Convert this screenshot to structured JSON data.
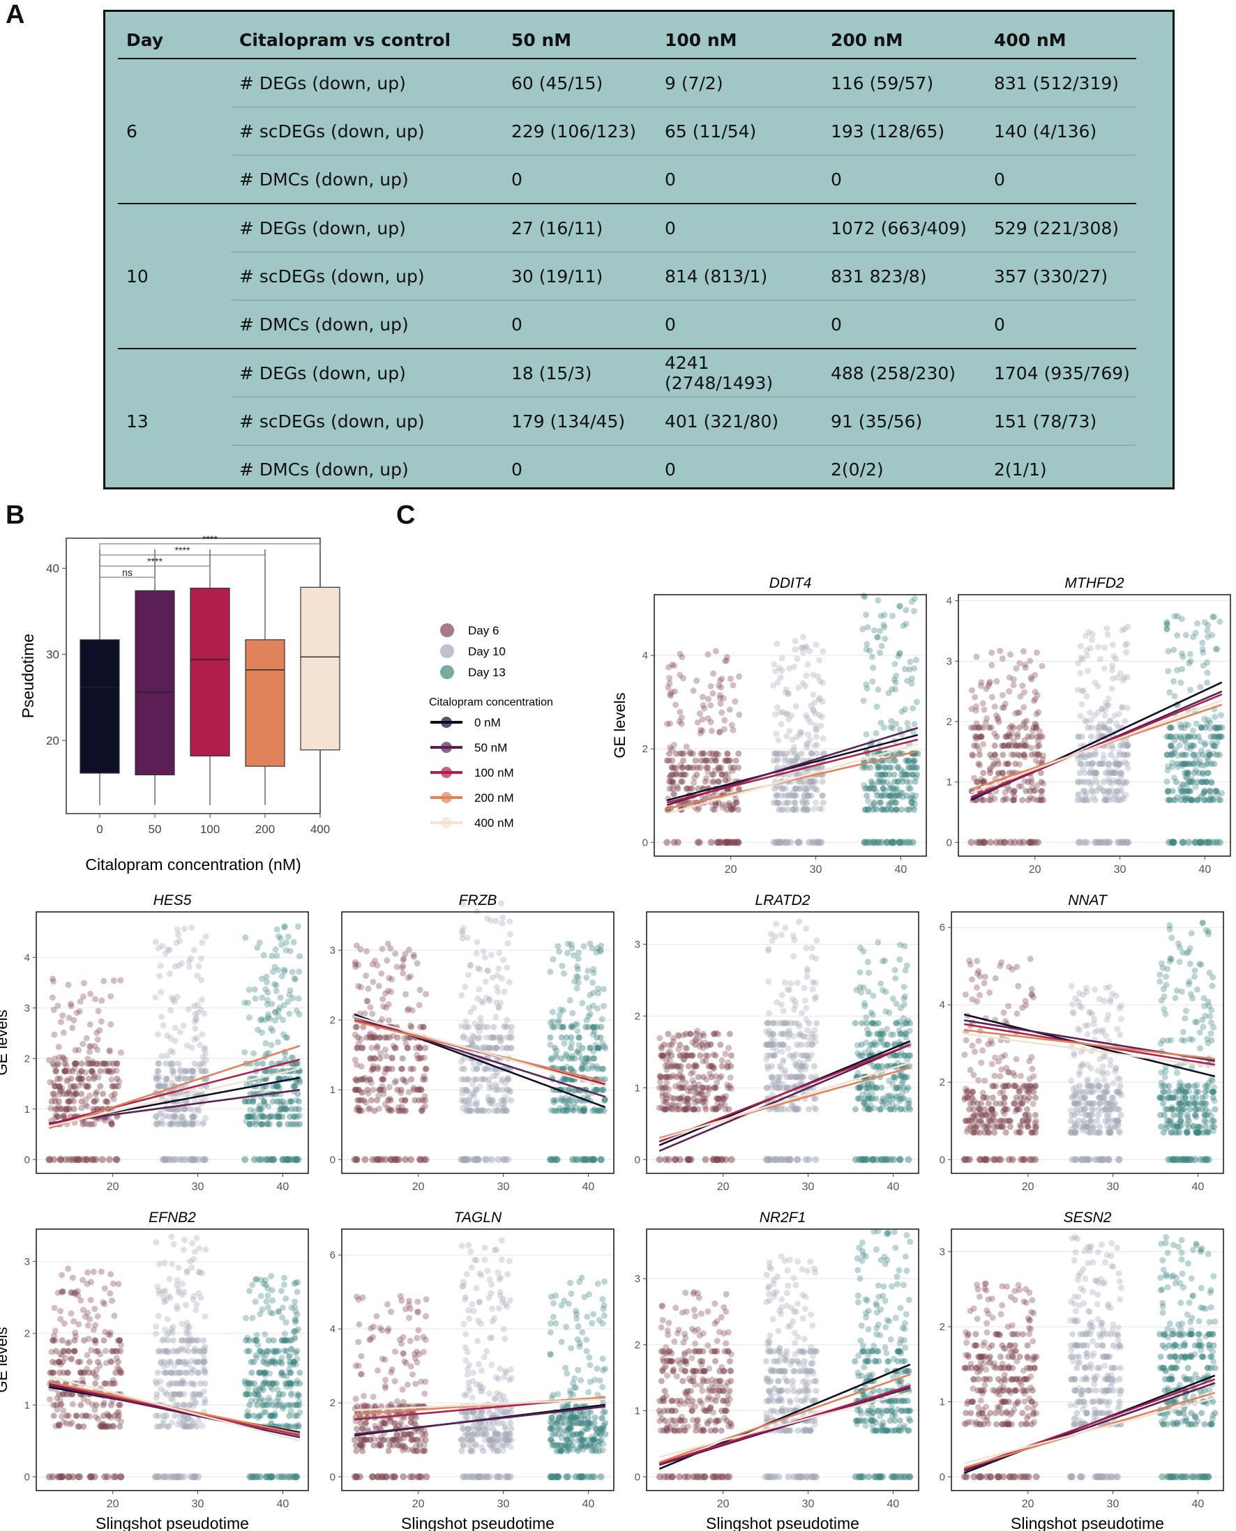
{
  "panels": {
    "a": "A",
    "b": "B",
    "c": "C"
  },
  "table": {
    "headers": [
      "Day",
      "Citalopram vs control",
      "50 nM",
      "100 nM",
      "200 nM",
      "400 nM"
    ],
    "groups": [
      {
        "day": "6",
        "rows": [
          {
            "label": "# DEGs (down, up)",
            "values": [
              "60 (45/15)",
              "9 (7/2)",
              "116 (59/57)",
              "831 (512/319)"
            ]
          },
          {
            "label": "# scDEGs (down, up)",
            "values": [
              "229 (106/123)",
              "65 (11/54)",
              "193 (128/65)",
              "140 (4/136)"
            ]
          },
          {
            "label": "# DMCs (down, up)",
            "values": [
              "0",
              "0",
              "0",
              "0"
            ]
          }
        ]
      },
      {
        "day": "10",
        "rows": [
          {
            "label": "# DEGs (down, up)",
            "values": [
              "27 (16/11)",
              "0",
              "1072 (663/409)",
              "529 (221/308)"
            ]
          },
          {
            "label": "# scDEGs (down, up)",
            "values": [
              "30 (19/11)",
              "814 (813/1)",
              "831 823/8)",
              "357 (330/27)"
            ]
          },
          {
            "label": "# DMCs (down, up)",
            "values": [
              "0",
              "0",
              "0",
              "0"
            ]
          }
        ]
      },
      {
        "day": "13",
        "rows": [
          {
            "label": "# DEGs (down, up)",
            "values": [
              "18 (15/3)",
              "4241 (2748/1493)",
              "488 (258/230)",
              "1704 (935/769)"
            ]
          },
          {
            "label": "# scDEGs (down, up)",
            "values": [
              "179 (134/45)",
              "401 (321/80)",
              "91 (35/56)",
              "151 (78/73)"
            ]
          },
          {
            "label": "# DMCs (down, up)",
            "values": [
              "0",
              "0",
              "2(0/2)",
              "2(1/1)"
            ]
          }
        ]
      }
    ]
  },
  "colors": {
    "conc": [
      "#0e0f26",
      "#5b1f55",
      "#b01e4b",
      "#e0825a",
      "#f4e3d3"
    ],
    "day": [
      "#7f4650",
      "#a4a8b6",
      "#3f8582"
    ],
    "tableBg": "#a1c6c6"
  },
  "legend": {
    "day_entries": [
      "Day 6",
      "Day 10",
      "Day 13"
    ],
    "conc_title": "Citalopram concentration",
    "conc_entries": [
      "0 nM",
      "50 nM",
      "100 nM",
      "200 nM",
      "400 nM"
    ]
  },
  "chart_data": [
    {
      "type": "box",
      "ylabel": "Pseudotime",
      "xlabel": "Citalopram concentration (nM)",
      "categories": [
        "0",
        "50",
        "100",
        "200",
        "400"
      ],
      "yticks": [
        20,
        30,
        40
      ],
      "ylim": [
        11.5,
        43.5
      ],
      "boxes": [
        {
          "min": 12.5,
          "q1": 16.2,
          "median": 26.2,
          "q3": 31.7,
          "max": 42.2
        },
        {
          "min": 12.5,
          "q1": 16.0,
          "median": 25.6,
          "q3": 37.4,
          "max": 42.2
        },
        {
          "min": 12.5,
          "q1": 18.2,
          "median": 29.4,
          "q3": 37.7,
          "max": 42.2
        },
        {
          "min": 12.5,
          "q1": 17.0,
          "median": 28.2,
          "q3": 31.7,
          "max": 42.2
        },
        {
          "min": 12.5,
          "q1": 18.9,
          "median": 29.7,
          "q3": 37.8,
          "max": 42.2
        }
      ],
      "comparisons": [
        {
          "from": 0,
          "to": 1,
          "label": "ns"
        },
        {
          "from": 0,
          "to": 2,
          "label": "****"
        },
        {
          "from": 0,
          "to": 3,
          "label": "****"
        },
        {
          "from": 0,
          "to": 4,
          "label": "****"
        }
      ]
    },
    {
      "type": "scatter",
      "subplots_xlabel": "Slingshot pseudotime",
      "subplots_ylabel": "GE levels",
      "xticks": [
        20,
        30,
        40
      ],
      "xlim": [
        11,
        43
      ],
      "genes": [
        {
          "title": "DDIT4",
          "yticks": [
            0,
            2,
            4
          ],
          "ymax": 5.3,
          "day_ranges": [
            [
              0.7,
              4.1
            ],
            [
              0.7,
              4.4
            ],
            [
              0.7,
              5.4
            ]
          ],
          "lines": [
            [
              0.9,
              2.3
            ],
            [
              0.8,
              2.45
            ],
            [
              0.85,
              2.2
            ],
            [
              0.72,
              1.95
            ],
            [
              0.62,
              2.1
            ]
          ]
        },
        {
          "title": "MTHFD2",
          "yticks": [
            0,
            1,
            2,
            3,
            4
          ],
          "ymax": 4.1,
          "day_ranges": [
            [
              0.7,
              3.2
            ],
            [
              0.7,
              3.7
            ],
            [
              0.7,
              3.75
            ]
          ],
          "lines": [
            [
              0.7,
              2.65
            ],
            [
              0.72,
              2.5
            ],
            [
              0.75,
              2.45
            ],
            [
              0.88,
              2.28
            ],
            [
              0.82,
              2.35
            ]
          ]
        },
        {
          "title": "HES5",
          "yticks": [
            0,
            1,
            2,
            3,
            4
          ],
          "ymax": 4.9,
          "day_ranges": [
            [
              0.7,
              3.6
            ],
            [
              0.7,
              4.6
            ],
            [
              0.7,
              4.7
            ]
          ],
          "lines": [
            [
              0.7,
              1.62
            ],
            [
              0.72,
              1.38
            ],
            [
              0.7,
              1.98
            ],
            [
              0.62,
              2.25
            ],
            [
              0.66,
              1.8
            ]
          ]
        },
        {
          "title": "FRZB",
          "yticks": [
            0,
            1,
            2,
            3
          ],
          "ymax": 3.55,
          "day_ranges": [
            [
              0.7,
              3.1
            ],
            [
              0.7,
              3.7
            ],
            [
              0.7,
              3.1
            ]
          ],
          "lines": [
            [
              2.08,
              0.75
            ],
            [
              2.04,
              0.9
            ],
            [
              2.0,
              1.08
            ],
            [
              1.98,
              1.12
            ],
            [
              2.05,
              1.05
            ]
          ]
        },
        {
          "title": "LRATD2",
          "yticks": [
            0,
            1,
            2,
            3
          ],
          "ymax": 3.45,
          "day_ranges": [
            [
              0.7,
              1.8
            ],
            [
              0.7,
              3.35
            ],
            [
              0.7,
              3.1
            ]
          ],
          "lines": [
            [
              0.2,
              1.65
            ],
            [
              0.12,
              1.6
            ],
            [
              0.25,
              1.6
            ],
            [
              0.3,
              1.28
            ],
            [
              0.28,
              1.35
            ]
          ]
        },
        {
          "title": "NNAT",
          "yticks": [
            0,
            2,
            4,
            6
          ],
          "ymax": 6.4,
          "day_ranges": [
            [
              0.7,
              5.2
            ],
            [
              0.7,
              4.5
            ],
            [
              0.7,
              6.2
            ]
          ],
          "lines": [
            [
              3.75,
              2.15
            ],
            [
              3.6,
              2.55
            ],
            [
              3.5,
              2.45
            ],
            [
              3.35,
              2.6
            ],
            [
              3.25,
              2.4
            ]
          ]
        },
        {
          "title": "EFNB2",
          "yticks": [
            0,
            1,
            2,
            3
          ],
          "ymax": 3.45,
          "day_ranges": [
            [
              0.7,
              2.9
            ],
            [
              0.7,
              3.35
            ],
            [
              0.7,
              2.8
            ]
          ],
          "lines": [
            [
              1.25,
              0.62
            ],
            [
              1.28,
              0.55
            ],
            [
              1.3,
              0.58
            ],
            [
              1.32,
              0.6
            ],
            [
              1.4,
              0.5
            ]
          ]
        },
        {
          "title": "TAGLN",
          "yticks": [
            0,
            2,
            4,
            6
          ],
          "ymax": 6.7,
          "day_ranges": [
            [
              0.7,
              5.0
            ],
            [
              0.7,
              6.4
            ],
            [
              0.7,
              5.4
            ]
          ],
          "lines": [
            [
              1.12,
              1.95
            ],
            [
              1.15,
              1.9
            ],
            [
              1.55,
              2.15
            ],
            [
              1.7,
              2.15
            ],
            [
              1.8,
              2.1
            ]
          ]
        },
        {
          "title": "NR2F1",
          "yticks": [
            0,
            1,
            2,
            3
          ],
          "ymax": 3.75,
          "day_ranges": [
            [
              0.7,
              2.8
            ],
            [
              0.7,
              3.4
            ],
            [
              0.7,
              3.75
            ]
          ],
          "lines": [
            [
              0.12,
              1.7
            ],
            [
              0.18,
              1.35
            ],
            [
              0.2,
              1.38
            ],
            [
              0.22,
              1.55
            ],
            [
              0.3,
              1.28
            ]
          ]
        },
        {
          "title": "SESN2",
          "yticks": [
            0,
            1,
            2,
            3
          ],
          "ymax": 3.3,
          "day_ranges": [
            [
              0.7,
              2.6
            ],
            [
              0.7,
              3.2
            ],
            [
              0.7,
              3.2
            ]
          ],
          "lines": [
            [
              0.05,
              1.35
            ],
            [
              0.08,
              1.25
            ],
            [
              0.1,
              1.3
            ],
            [
              0.12,
              1.12
            ],
            [
              0.18,
              1.05
            ]
          ]
        }
      ]
    }
  ]
}
